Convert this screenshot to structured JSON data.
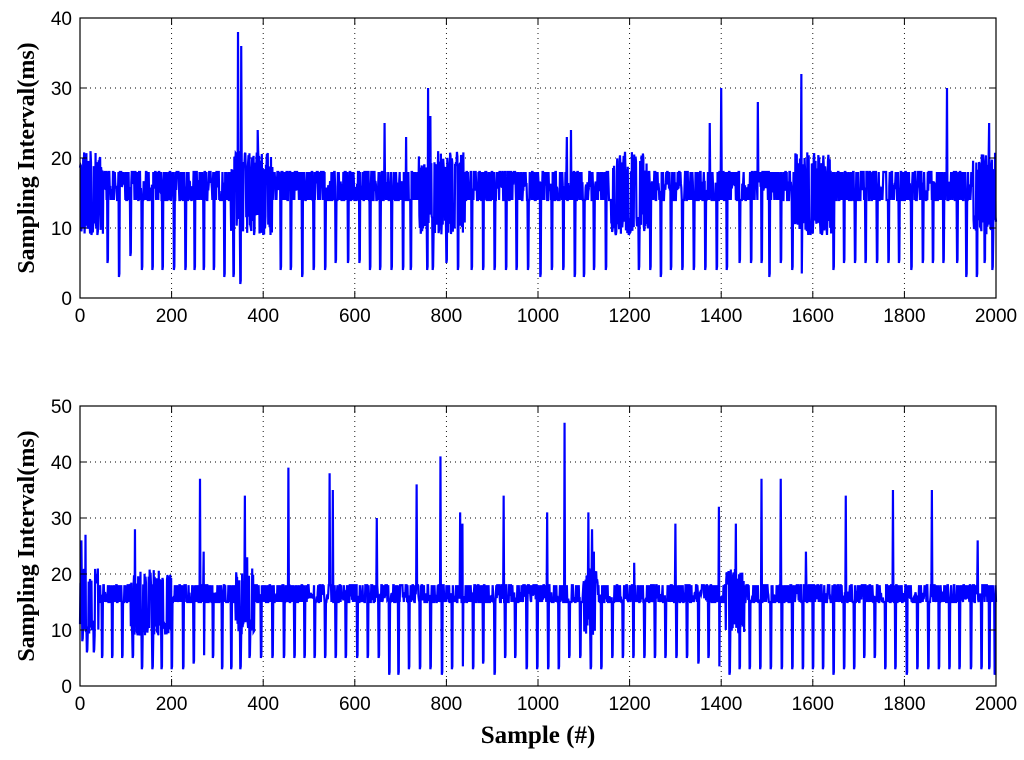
{
  "chart_data": [
    {
      "type": "line",
      "title": "",
      "xlabel": "",
      "ylabel": "Sampling Interval(ms)",
      "xlim": [
        0,
        2000
      ],
      "ylim": [
        0,
        40
      ],
      "xticks": [
        0,
        200,
        400,
        600,
        800,
        1000,
        1200,
        1400,
        1600,
        1800,
        2000
      ],
      "yticks": [
        0,
        10,
        20,
        30,
        40
      ],
      "grid": true,
      "legend": "none",
      "series": [
        {
          "color": "#0000ff",
          "baseline": 16,
          "band": [
            14,
            18
          ],
          "noisy_ranges": [
            [
              0,
              50
            ],
            [
              330,
              420
            ],
            [
              740,
              840
            ],
            [
              1160,
              1240
            ],
            [
              1560,
              1640
            ],
            [
              1950,
              2000
            ]
          ],
          "dips": [
            [
              5,
              10
            ],
            [
              25,
              9
            ],
            [
              38,
              9
            ],
            [
              60,
              5
            ],
            [
              85,
              3
            ],
            [
              110,
              6
            ],
            [
              135,
              4
            ],
            [
              158,
              4
            ],
            [
              180,
              4
            ],
            [
              205,
              4
            ],
            [
              230,
              4
            ],
            [
              250,
              4
            ],
            [
              270,
              4
            ],
            [
              292,
              4
            ],
            [
              315,
              3
            ],
            [
              335,
              3
            ],
            [
              350,
              2
            ],
            [
              380,
              9
            ],
            [
              400,
              9
            ],
            [
              438,
              4
            ],
            [
              460,
              4
            ],
            [
              485,
              3
            ],
            [
              510,
              4
            ],
            [
              535,
              4
            ],
            [
              558,
              5
            ],
            [
              585,
              5
            ],
            [
              610,
              5
            ],
            [
              633,
              4
            ],
            [
              655,
              4
            ],
            [
              680,
              4
            ],
            [
              705,
              4
            ],
            [
              722,
              4
            ],
            [
              758,
              4
            ],
            [
              770,
              4
            ],
            [
              800,
              5
            ],
            [
              825,
              4
            ],
            [
              855,
              4
            ],
            [
              880,
              4
            ],
            [
              905,
              4
            ],
            [
              930,
              4
            ],
            [
              953,
              4
            ],
            [
              978,
              4
            ],
            [
              1005,
              3
            ],
            [
              1030,
              4
            ],
            [
              1055,
              4
            ],
            [
              1080,
              3
            ],
            [
              1100,
              3
            ],
            [
              1122,
              4
            ],
            [
              1148,
              4
            ],
            [
              1170,
              9
            ],
            [
              1198,
              9
            ],
            [
              1220,
              4
            ],
            [
              1245,
              4
            ],
            [
              1268,
              3
            ],
            [
              1290,
              4
            ],
            [
              1315,
              4
            ],
            [
              1340,
              4
            ],
            [
              1365,
              4
            ],
            [
              1390,
              4
            ],
            [
              1412,
              4
            ],
            [
              1440,
              5
            ],
            [
              1465,
              5
            ],
            [
              1488,
              5
            ],
            [
              1505,
              3
            ],
            [
              1530,
              5
            ],
            [
              1555,
              4
            ],
            [
              1575,
              3
            ],
            [
              1595,
              9
            ],
            [
              1620,
              9
            ],
            [
              1645,
              4
            ],
            [
              1668,
              5
            ],
            [
              1692,
              5
            ],
            [
              1715,
              5
            ],
            [
              1740,
              5
            ],
            [
              1765,
              5
            ],
            [
              1788,
              5
            ],
            [
              1815,
              4
            ],
            [
              1840,
              5
            ],
            [
              1862,
              5
            ],
            [
              1885,
              5
            ],
            [
              1915,
              5
            ],
            [
              1935,
              3
            ],
            [
              1958,
              3
            ],
            [
              1975,
              5
            ],
            [
              1992,
              4
            ]
          ],
          "peaks": [
            [
              345,
              38
            ],
            [
              352,
              36
            ],
            [
              388,
              24
            ],
            [
              665,
              25
            ],
            [
              712,
              23
            ],
            [
              760,
              30
            ],
            [
              765,
              26
            ],
            [
              1063,
              23
            ],
            [
              1072,
              24
            ],
            [
              1375,
              25
            ],
            [
              1400,
              30
            ],
            [
              1480,
              28
            ],
            [
              1575,
              32
            ],
            [
              1893,
              30
            ],
            [
              1985,
              25
            ]
          ]
        }
      ]
    },
    {
      "type": "line",
      "title": "",
      "xlabel": "Sample (#)",
      "ylabel": "Sampling Interval(ms)",
      "xlim": [
        0,
        2000
      ],
      "ylim": [
        0,
        50
      ],
      "xticks": [
        0,
        200,
        400,
        600,
        800,
        1000,
        1200,
        1400,
        1600,
        1800,
        2000
      ],
      "yticks": [
        0,
        10,
        20,
        30,
        40,
        50
      ],
      "grid": true,
      "legend": "none",
      "series": [
        {
          "color": "#0000ff",
          "baseline": 16,
          "band": [
            15,
            18
          ],
          "noisy_ranges": [
            [
              0,
              40
            ],
            [
              110,
              200
            ],
            [
              340,
              380
            ],
            [
              1100,
              1130
            ],
            [
              1410,
              1450
            ]
          ],
          "dips": [
            [
              5,
              8
            ],
            [
              15,
              6
            ],
            [
              30,
              6
            ],
            [
              48,
              5
            ],
            [
              70,
              5
            ],
            [
              92,
              5
            ],
            [
              115,
              5
            ],
            [
              135,
              3
            ],
            [
              158,
              3
            ],
            [
              178,
              3
            ],
            [
              200,
              3
            ],
            [
              225,
              3
            ],
            [
              248,
              4
            ],
            [
              270,
              5
            ],
            [
              290,
              5
            ],
            [
              310,
              3
            ],
            [
              330,
              3
            ],
            [
              350,
              3
            ],
            [
              370,
              5
            ],
            [
              395,
              5
            ],
            [
              420,
              5
            ],
            [
              445,
              5
            ],
            [
              468,
              5
            ],
            [
              490,
              5
            ],
            [
              512,
              5
            ],
            [
              535,
              5
            ],
            [
              558,
              5
            ],
            [
              580,
              5
            ],
            [
              605,
              5
            ],
            [
              628,
              5
            ],
            [
              652,
              5
            ],
            [
              675,
              2
            ],
            [
              695,
              2
            ],
            [
              718,
              3
            ],
            [
              742,
              3
            ],
            [
              765,
              3
            ],
            [
              790,
              2
            ],
            [
              812,
              3
            ],
            [
              835,
              3
            ],
            [
              858,
              3
            ],
            [
              880,
              4
            ],
            [
              905,
              2
            ],
            [
              928,
              5
            ],
            [
              950,
              5
            ],
            [
              975,
              3
            ],
            [
              998,
              3
            ],
            [
              1022,
              3
            ],
            [
              1045,
              3
            ],
            [
              1068,
              5
            ],
            [
              1092,
              5
            ],
            [
              1115,
              3
            ],
            [
              1138,
              3
            ],
            [
              1162,
              5
            ],
            [
              1185,
              5
            ],
            [
              1208,
              5
            ],
            [
              1232,
              5
            ],
            [
              1255,
              5
            ],
            [
              1278,
              5
            ],
            [
              1302,
              5
            ],
            [
              1325,
              5
            ],
            [
              1350,
              4
            ],
            [
              1372,
              5
            ],
            [
              1395,
              3
            ],
            [
              1418,
              2
            ],
            [
              1440,
              3
            ],
            [
              1462,
              3
            ],
            [
              1485,
              3
            ],
            [
              1508,
              3
            ],
            [
              1532,
              3
            ],
            [
              1555,
              3
            ],
            [
              1578,
              3
            ],
            [
              1600,
              3
            ],
            [
              1622,
              3
            ],
            [
              1645,
              2
            ],
            [
              1668,
              3
            ],
            [
              1690,
              3
            ],
            [
              1712,
              5
            ],
            [
              1735,
              5
            ],
            [
              1758,
              3
            ],
            [
              1780,
              3
            ],
            [
              1805,
              2
            ],
            [
              1828,
              3
            ],
            [
              1852,
              3
            ],
            [
              1875,
              3
            ],
            [
              1898,
              3
            ],
            [
              1920,
              3
            ],
            [
              1945,
              3
            ],
            [
              1968,
              3
            ],
            [
              1985,
              3
            ],
            [
              1997,
              2
            ]
          ],
          "peaks": [
            [
              3,
              26
            ],
            [
              12,
              27
            ],
            [
              120,
              28
            ],
            [
              262,
              37
            ],
            [
              270,
              24
            ],
            [
              360,
              34
            ],
            [
              365,
              23
            ],
            [
              455,
              39
            ],
            [
              545,
              38
            ],
            [
              552,
              35
            ],
            [
              648,
              30
            ],
            [
              735,
              36
            ],
            [
              787,
              41
            ],
            [
              830,
              31
            ],
            [
              835,
              29
            ],
            [
              925,
              34
            ],
            [
              1020,
              31
            ],
            [
              1058,
              47
            ],
            [
              1110,
              31
            ],
            [
              1118,
              28
            ],
            [
              1122,
              24
            ],
            [
              1210,
              22
            ],
            [
              1300,
              29
            ],
            [
              1395,
              32
            ],
            [
              1432,
              29
            ],
            [
              1488,
              37
            ],
            [
              1530,
              37
            ],
            [
              1585,
              24
            ],
            [
              1672,
              34
            ],
            [
              1775,
              35
            ],
            [
              1860,
              35
            ],
            [
              1960,
              26
            ]
          ]
        }
      ]
    }
  ]
}
